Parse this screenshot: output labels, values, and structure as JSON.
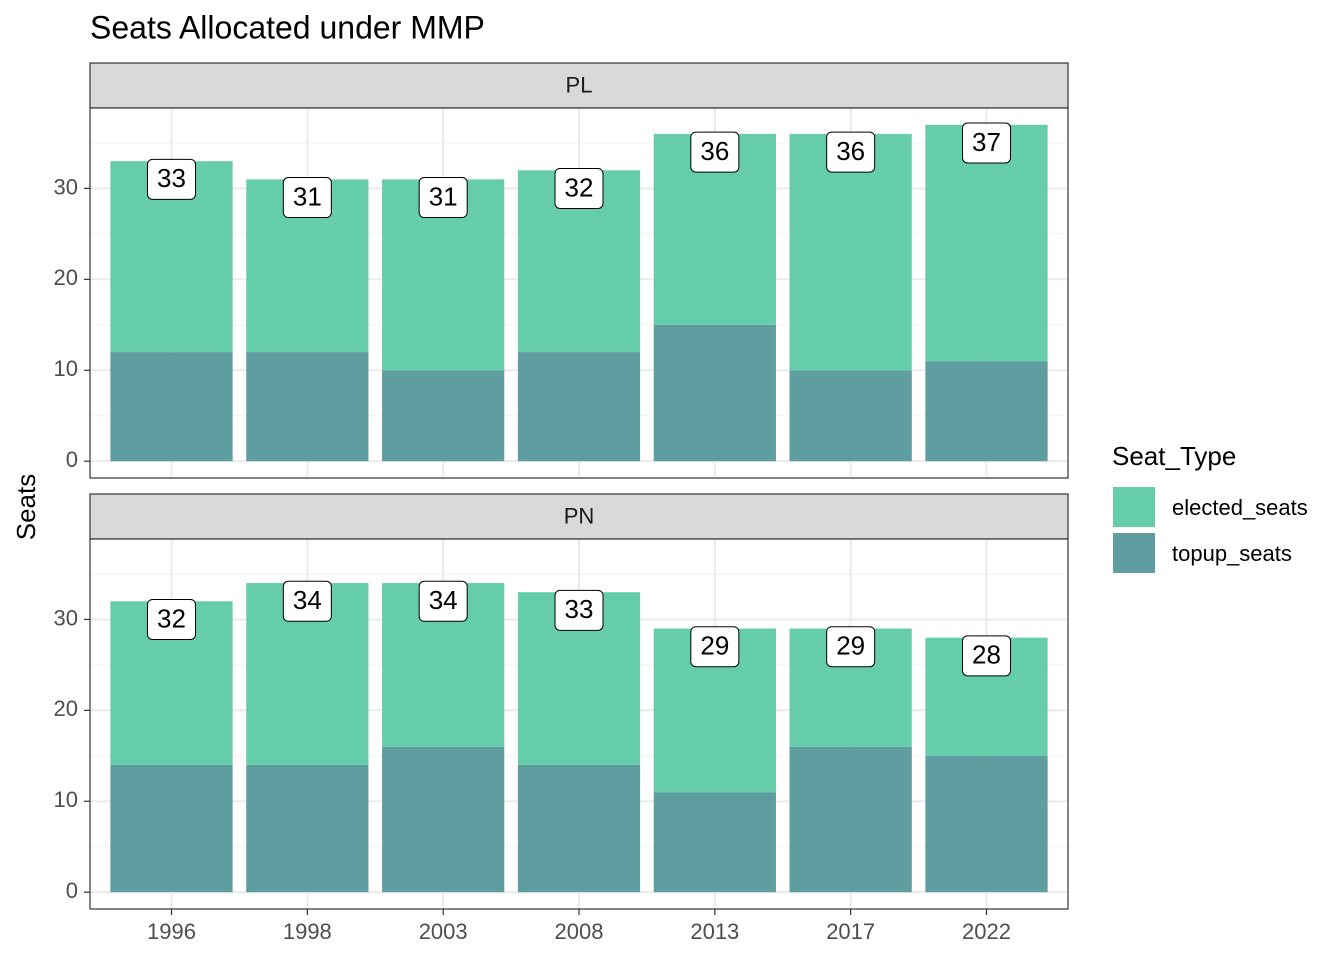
{
  "chart_data": {
    "type": "bar",
    "stacked": true,
    "title": "Seats Allocated under MMP",
    "y_label": "Seats",
    "legend_title": "Seat_Type",
    "categories": [
      "1996",
      "1998",
      "2003",
      "2008",
      "2013",
      "2017",
      "2022"
    ],
    "facets": [
      {
        "name": "PL",
        "series": [
          {
            "name": "elected_seats",
            "color": "#66cdaa",
            "values": [
              21,
              19,
              21,
              20,
              21,
              26,
              26
            ]
          },
          {
            "name": "topup_seats",
            "color": "#5f9ea0",
            "values": [
              12,
              12,
              10,
              12,
              15,
              10,
              11
            ]
          }
        ],
        "total_labels": [
          33,
          31,
          31,
          32,
          36,
          36,
          37
        ]
      },
      {
        "name": "PN",
        "series": [
          {
            "name": "elected_seats",
            "color": "#66cdaa",
            "values": [
              18,
              20,
              18,
              19,
              18,
              13,
              13
            ]
          },
          {
            "name": "topup_seats",
            "color": "#5f9ea0",
            "values": [
              14,
              14,
              16,
              14,
              11,
              16,
              15
            ]
          }
        ],
        "total_labels": [
          32,
          34,
          34,
          33,
          29,
          29,
          28
        ]
      }
    ],
    "ylim": [
      -1.85,
      38.85
    ],
    "yticks": [
      0,
      10,
      20,
      30
    ],
    "yminor": [
      5,
      15,
      25,
      35
    ],
    "grid": true
  }
}
